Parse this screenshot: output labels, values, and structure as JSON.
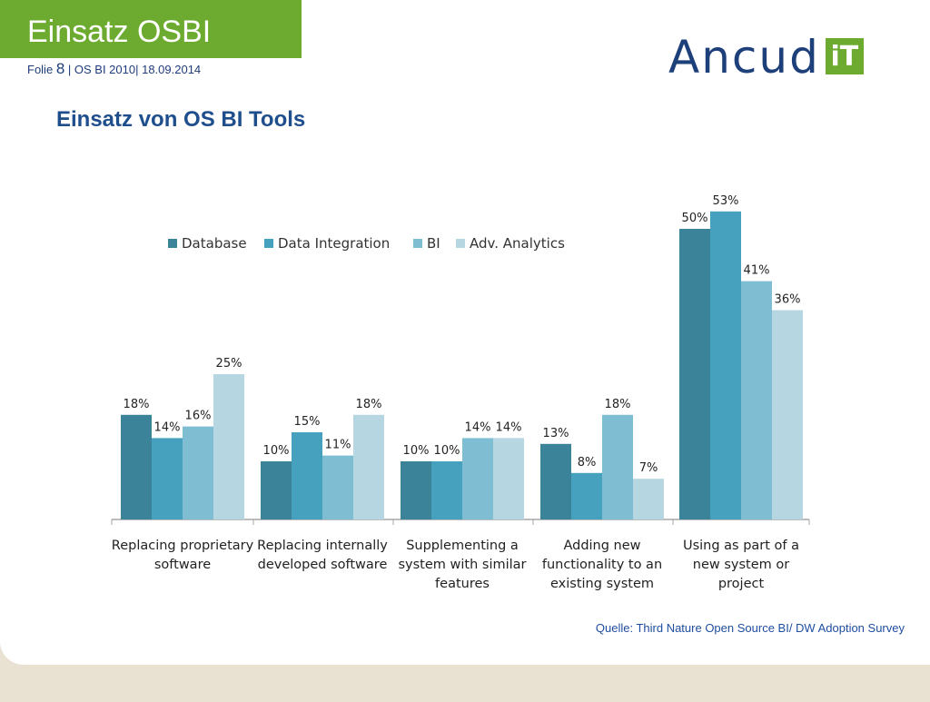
{
  "header": {
    "title": "Einsatz OSBI",
    "meta_prefix": "Folie",
    "slide_number": "8",
    "meta_suffix": "| OS BI 2010|  18.09.2014"
  },
  "logo": {
    "text": "Ancud",
    "badge": "iT"
  },
  "slide_title": "Einsatz von OS BI Tools",
  "source": "Quelle: Third Nature Open Source BI/ DW Adoption Survey",
  "colors": {
    "accent_green": "#6cab2f",
    "title_blue": "#1f4e8c",
    "database": "#3a8399",
    "data_integration": "#45a1bd",
    "bi": "#7fbdd3",
    "adv_analytics": "#b6d6e2"
  },
  "chart_data": {
    "type": "bar",
    "categories": [
      [
        "Replacing proprietary",
        "software"
      ],
      [
        "Replacing internally",
        "developed software"
      ],
      [
        "Supplementing a",
        "system with similar",
        "features"
      ],
      [
        "Adding new",
        "functionality to an",
        "existing system"
      ],
      [
        "Using as part of a",
        "new system or",
        "project"
      ]
    ],
    "series": [
      {
        "name": "Database",
        "color": "#3a8399",
        "values": [
          18,
          10,
          10,
          13,
          50
        ]
      },
      {
        "name": "Data Integration",
        "color": "#45a1bd",
        "values": [
          14,
          15,
          10,
          8,
          53
        ]
      },
      {
        "name": "BI",
        "color": "#7fbdd3",
        "values": [
          16,
          11,
          14,
          18,
          41
        ]
      },
      {
        "name": "Adv. Analytics",
        "color": "#b6d6e2",
        "values": [
          25,
          18,
          14,
          7,
          36
        ]
      }
    ],
    "value_suffix": "%",
    "legend_position": "top-left",
    "grid": false
  }
}
